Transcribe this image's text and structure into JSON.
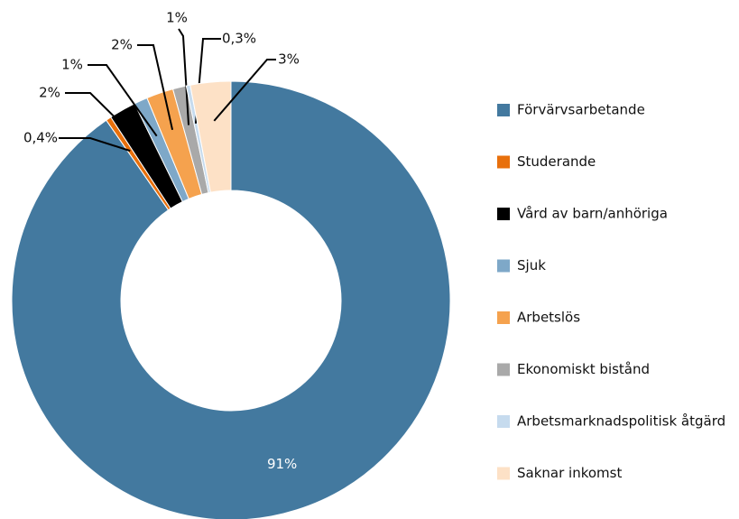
{
  "chart_data": {
    "type": "donut",
    "categories": [
      "Förvärvsarbetande",
      "Studerande",
      "Vård av barn/anhöriga",
      "Sjuk",
      "Arbetslös",
      "Ekonomiskt bistånd",
      "Arbetsmarknadspolitisk åtgärd",
      "Saknar inkomst"
    ],
    "values": [
      91,
      0.4,
      2,
      1,
      2,
      1,
      0.3,
      3
    ],
    "value_labels": [
      "91%",
      "0,4%",
      "2%",
      "1%",
      "2%",
      "1%",
      "0,3%",
      "3%"
    ],
    "colors": [
      "#43799f",
      "#e8700c",
      "#000000",
      "#7ea8c8",
      "#f5a24e",
      "#a9a9a9",
      "#c6dbee",
      "#fde1c6"
    ],
    "legend": "right"
  }
}
